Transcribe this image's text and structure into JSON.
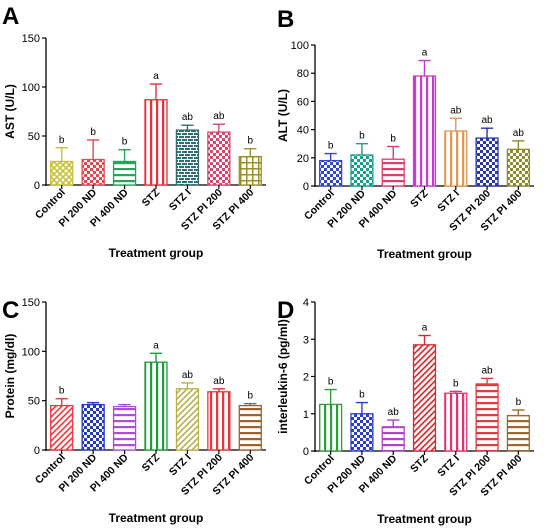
{
  "chart_data": [
    {
      "type": "bar",
      "panel_label": "A",
      "title": "",
      "xlabel": "Treatment group",
      "ylabel": "AST (U/L)",
      "ylim": [
        0,
        150
      ],
      "yticks": [
        0,
        50,
        100,
        150
      ],
      "categories": [
        "Control",
        "PI 200 ND",
        "PI 400 ND",
        "STZ",
        "STZ I",
        "STZ PI 200",
        "STZ PI 400"
      ],
      "values": [
        24,
        26,
        24,
        87,
        56,
        54,
        29
      ],
      "errors": [
        14,
        20,
        12,
        16,
        5,
        8,
        8
      ],
      "sig_labels": [
        "b",
        "b",
        "b",
        "a",
        "ab",
        "ab",
        "b"
      ],
      "colors": [
        "#c9c13a",
        "#e8454e",
        "#27a35c",
        "#f02c36",
        "#2f6f73",
        "#d9476e",
        "#9c9128"
      ],
      "patterns": [
        "crosshatch",
        "checker",
        "hlines",
        "vlines",
        "brick",
        "checker",
        "grid"
      ]
    },
    {
      "type": "bar",
      "panel_label": "B",
      "title": "",
      "xlabel": "Treatment group",
      "ylabel": "ALT (U/L)",
      "ylim": [
        0,
        100
      ],
      "yticks": [
        0,
        20,
        40,
        60,
        80,
        100
      ],
      "categories": [
        "Control",
        "PI 200 ND",
        "PI 400 ND",
        "STZ",
        "STZ I",
        "STZ PI 200",
        "STZ PI 400"
      ],
      "values": [
        18,
        22,
        19,
        78,
        39,
        34,
        26
      ],
      "errors": [
        5,
        8,
        9,
        11,
        9,
        7,
        6
      ],
      "sig_labels": [
        "b",
        "b",
        "b",
        "a",
        "ab",
        "ab",
        "ab"
      ],
      "colors": [
        "#3246d6",
        "#16a08e",
        "#e23c6b",
        "#c43ccf",
        "#e6954e",
        "#2a35b0",
        "#8c8a2e"
      ],
      "patterns": [
        "checker",
        "checker",
        "hlines",
        "vlines",
        "vlines",
        "checker",
        "checker"
      ]
    },
    {
      "type": "bar",
      "panel_label": "C",
      "title": "",
      "xlabel": "Treatment group",
      "ylabel": "Protein (mg/dl)",
      "ylim": [
        0,
        150
      ],
      "yticks": [
        0,
        50,
        100,
        150
      ],
      "categories": [
        "Control",
        "PI 200 ND",
        "PI 400 ND",
        "STZ",
        "STZ I",
        "STZ PI 200",
        "STZ PI 400"
      ],
      "values": [
        45,
        46,
        44,
        89,
        62,
        59,
        45
      ],
      "errors": [
        7,
        2,
        2,
        9,
        6,
        3,
        2
      ],
      "sig_labels": [
        "b",
        "",
        "",
        "a",
        "ab",
        "ab",
        "b"
      ],
      "colors": [
        "#ef3541",
        "#2238c9",
        "#b04cd9",
        "#1f9c3c",
        "#b8b048",
        "#f0303b",
        "#a0602a"
      ],
      "patterns": [
        "diagonal",
        "checker",
        "hlines",
        "vlines",
        "diagonal",
        "vlines",
        "hlines"
      ]
    },
    {
      "type": "bar",
      "panel_label": "D",
      "title": "",
      "xlabel": "Treatment group",
      "ylabel": "interleukin-6 (pg/ml)",
      "ylim": [
        0,
        4
      ],
      "yticks": [
        0,
        1,
        2,
        3,
        4
      ],
      "categories": [
        "Control",
        "PI 200 ND",
        "PI 400 ND",
        "STZ",
        "STZ I",
        "STZ PI 200",
        "STZ PI 400"
      ],
      "values": [
        1.25,
        1.0,
        0.65,
        2.85,
        1.55,
        1.8,
        0.95
      ],
      "errors": [
        0.4,
        0.3,
        0.18,
        0.25,
        0.05,
        0.15,
        0.15
      ],
      "sig_labels": [
        "b",
        "b",
        "ab",
        "a",
        "b",
        "ab",
        "b"
      ],
      "colors": [
        "#2d9c3a",
        "#2c3ed0",
        "#b043c9",
        "#d8252c",
        "#e8306b",
        "#e23a40",
        "#9a6a2e"
      ],
      "patterns": [
        "vlines",
        "checker",
        "hlines",
        "diagonal",
        "vlines",
        "hlines",
        "hlines"
      ]
    }
  ]
}
